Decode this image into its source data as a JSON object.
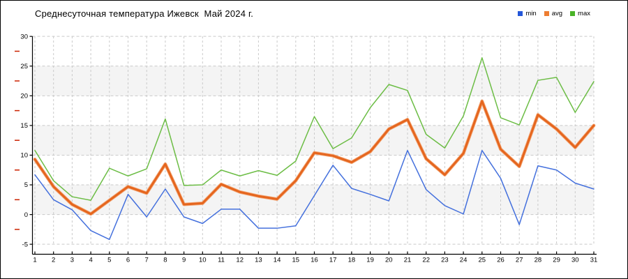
{
  "header": {
    "title": "Среднесуточная температура Ижевск  Май 2024 г."
  },
  "legend": {
    "items": [
      {
        "label": "min",
        "color": "#2457d9"
      },
      {
        "label": "avg",
        "color": "#ed7d31"
      },
      {
        "label": "max",
        "color": "#49b327"
      }
    ]
  },
  "chart_data": {
    "type": "line",
    "title": "Среднесуточная температура Ижевск  Май 2024 г.",
    "xlabel": "",
    "ylabel": "",
    "x_ticks": [
      1,
      2,
      3,
      4,
      5,
      6,
      7,
      8,
      9,
      10,
      11,
      12,
      13,
      14,
      15,
      16,
      17,
      18,
      19,
      20,
      21,
      22,
      23,
      24,
      25,
      26,
      27,
      28,
      29,
      30,
      31
    ],
    "y_ticks": [
      30,
      25,
      20,
      15,
      10,
      5,
      0,
      -5
    ],
    "ylim": [
      -5,
      30
    ],
    "xlim": [
      1,
      31
    ],
    "grid": true,
    "legend_position": "top-right",
    "bands": [
      [
        25,
        20
      ],
      [
        15,
        10
      ],
      [
        5,
        0
      ]
    ],
    "colors": {
      "band": "#f4f4f4",
      "grid": "#c9c9c9",
      "minor_tick": "#cc2200",
      "axis": "#000000"
    },
    "series": [
      {
        "name": "min",
        "color": "#4470dd",
        "width": 1.5,
        "values": [
          6.7,
          2.5,
          0.8,
          -2.7,
          -4.2,
          3.4,
          -0.4,
          4.3,
          -0.4,
          -1.5,
          0.9,
          0.9,
          -2.3,
          -2.3,
          -1.9,
          3.2,
          8.3,
          4.4,
          3.4,
          2.3,
          10.8,
          4.2,
          1.5,
          0.1,
          10.8,
          6.1,
          -1.7,
          8.2,
          7.5,
          5.3,
          4.3
        ]
      },
      {
        "name": "avg",
        "color": "#e5661f",
        "halo": "#f3a878",
        "width": 3,
        "values": [
          9.3,
          4.7,
          1.7,
          0.1,
          2.4,
          4.7,
          3.6,
          8.5,
          1.7,
          1.9,
          5.1,
          3.8,
          3.1,
          2.6,
          5.7,
          10.4,
          9.9,
          8.8,
          10.6,
          14.4,
          16.0,
          9.4,
          6.7,
          10.3,
          19.1,
          11.0,
          8.1,
          16.8,
          14.4,
          11.3,
          15.0
        ]
      },
      {
        "name": "max",
        "color": "#6cbd45",
        "width": 1.5,
        "values": [
          10.8,
          5.7,
          3.0,
          2.4,
          7.8,
          6.5,
          7.7,
          16.1,
          4.9,
          5.0,
          7.5,
          6.5,
          7.4,
          6.6,
          9.0,
          16.5,
          11.1,
          12.9,
          18.0,
          21.9,
          20.9,
          13.5,
          11.2,
          16.6,
          26.4,
          16.3,
          15.1,
          22.6,
          23.1,
          17.2,
          22.4
        ]
      }
    ]
  }
}
